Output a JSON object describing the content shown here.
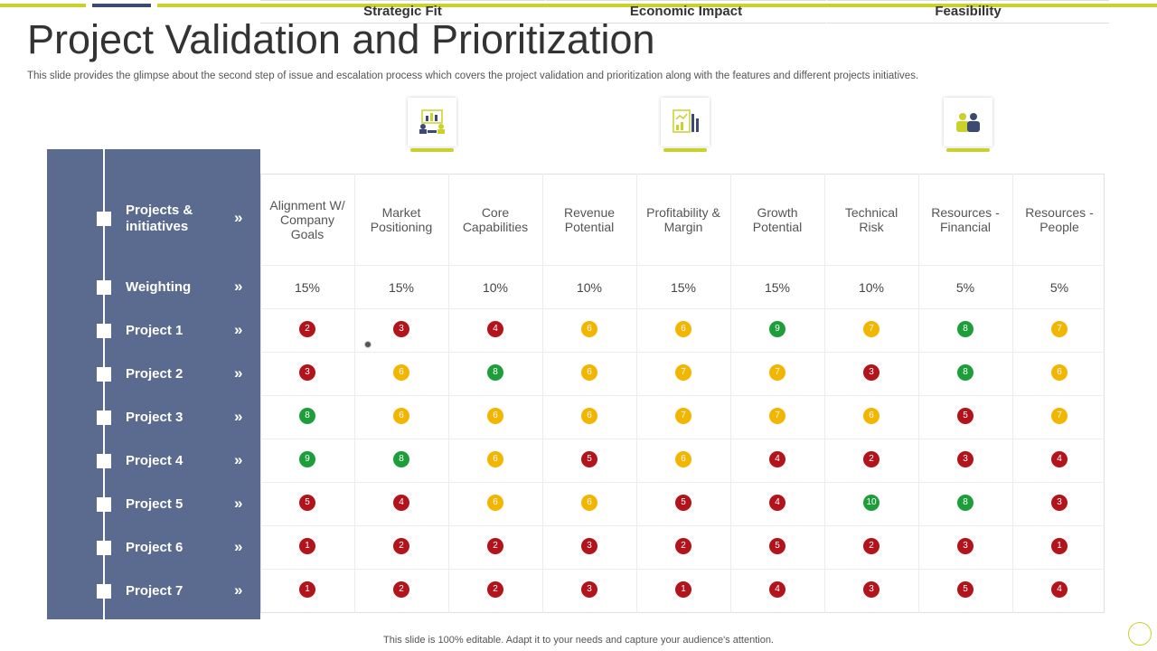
{
  "title": "Project Validation and Prioritization",
  "subtitle": "This slide provides the glimpse about the second step of issue and escalation process which covers the project validation and prioritization along with the features and different projects initiatives.",
  "footer": "This slide is 100% editable. Adapt it to your needs and capture your audience's attention.",
  "colors": {
    "green": "#1e9e3a",
    "orange": "#f2b600",
    "red": "#b3141b",
    "panel": "#5a6b8f",
    "accent": "#c9d12a",
    "navy": "#3c4a73"
  },
  "row_labels": [
    "Projects & initiatives",
    "Weighting",
    "Project 1",
    "Project 2",
    "Project 3",
    "Project 4",
    "Project 5",
    "Project 6",
    "Project 7"
  ],
  "groups": [
    {
      "label": "Strategic Fit",
      "icon": "meeting-icon"
    },
    {
      "label": "Economic Impact",
      "icon": "bar-chart-icon"
    },
    {
      "label": "Feasibility",
      "icon": "people-icon"
    }
  ],
  "columns": [
    "Alignment W/ Company Goals",
    "Market Positioning",
    "Core Capabilities",
    "Revenue Potential",
    "Profitability & Margin",
    "Growth Potential",
    "Technical Risk",
    "Resources - Financial",
    "Resources - People"
  ],
  "weights": [
    "15%",
    "15%",
    "10%",
    "10%",
    "15%",
    "15%",
    "10%",
    "5%",
    "5%"
  ],
  "scores": [
    [
      2,
      3,
      4,
      6,
      6,
      9,
      7,
      8,
      7
    ],
    [
      3,
      6,
      8,
      6,
      7,
      7,
      3,
      8,
      6
    ],
    [
      8,
      6,
      6,
      6,
      7,
      7,
      6,
      5,
      7
    ],
    [
      9,
      8,
      6,
      5,
      6,
      4,
      2,
      3,
      4
    ],
    [
      5,
      4,
      6,
      6,
      5,
      4,
      10,
      8,
      3
    ],
    [
      1,
      2,
      2,
      3,
      2,
      5,
      2,
      3,
      1
    ],
    [
      1,
      2,
      2,
      3,
      1,
      4,
      3,
      5,
      4
    ]
  ]
}
